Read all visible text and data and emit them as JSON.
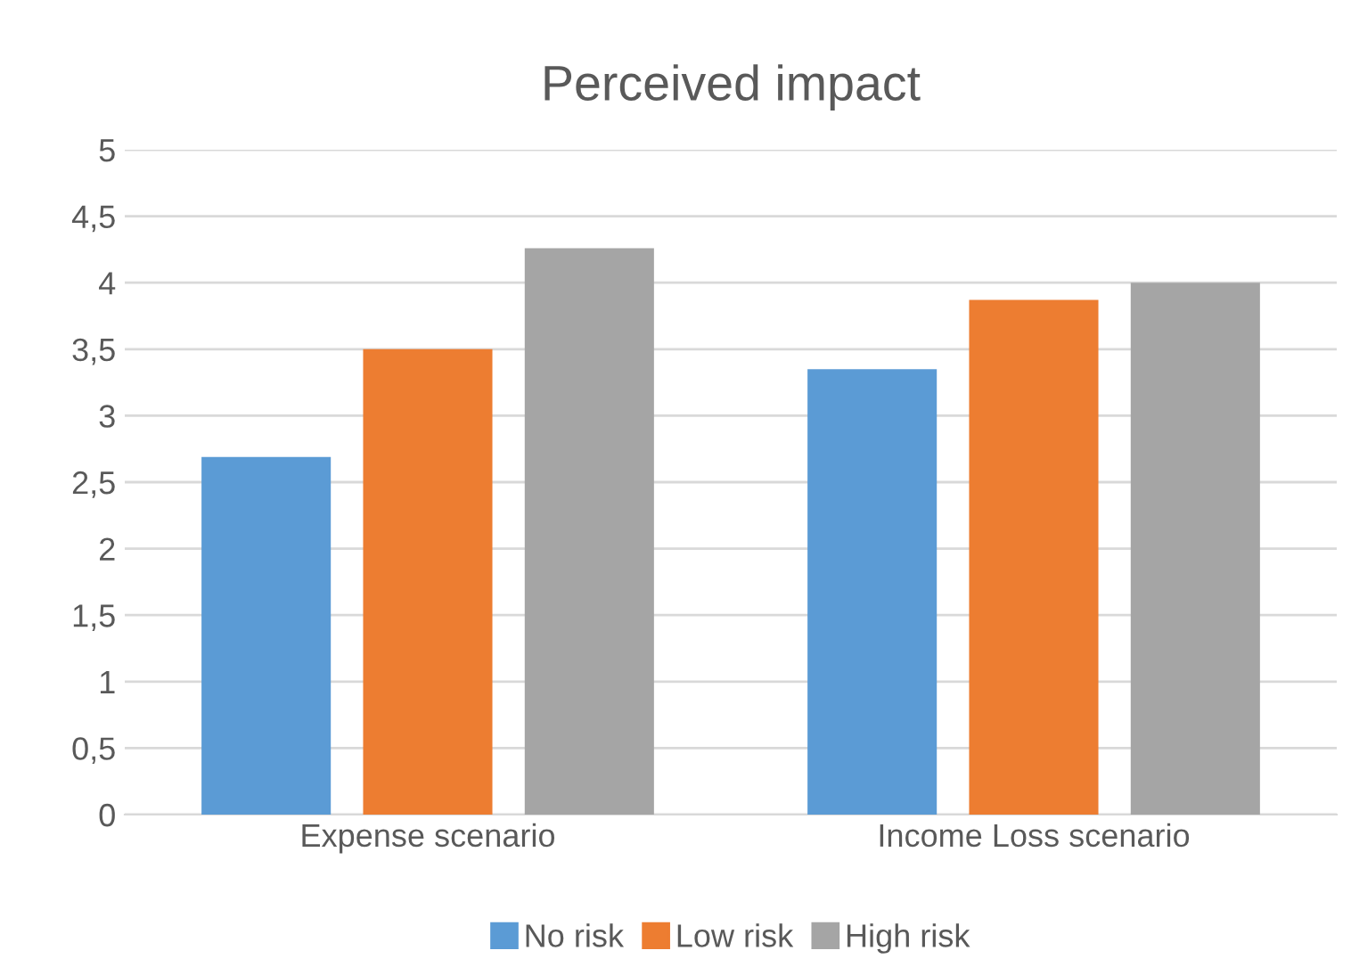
{
  "chart_data": {
    "type": "bar",
    "title": "Perceived impact",
    "categories": [
      "Expense scenario",
      "Income Loss scenario"
    ],
    "series": [
      {
        "name": "No risk",
        "color": "#5b9bd5",
        "values": [
          2.69,
          3.35
        ]
      },
      {
        "name": "Low risk",
        "color": "#ed7d31",
        "values": [
          3.5,
          3.87
        ]
      },
      {
        "name": "High risk",
        "color": "#a5a5a5",
        "values": [
          4.26,
          4.0
        ]
      }
    ],
    "ylim": [
      0,
      5
    ],
    "yticks": [
      0,
      {
        "value": 0.5,
        "label": "0,5"
      },
      1,
      {
        "value": 1.5,
        "label": "1,5"
      },
      2,
      {
        "value": 2.5,
        "label": "2,5"
      },
      3,
      {
        "value": 3.5,
        "label": "3,5"
      },
      4,
      {
        "value": 4.5,
        "label": "4,5"
      },
      5
    ],
    "grid": "y",
    "legend": "bottom"
  }
}
